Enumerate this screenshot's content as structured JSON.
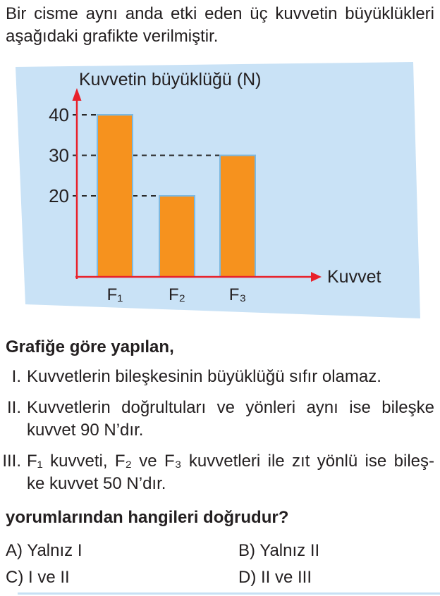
{
  "intro": {
    "lines": [
      "Bir cisme aynı anda etki eden üç kuvvetin büyüklükleri",
      "aşağıdaki grafikte verilmiştir."
    ]
  },
  "chart_data": {
    "type": "bar",
    "title": "",
    "ylabel": "Kuvvetin büyüklüğü (N)",
    "xlabel": "Kuvvet",
    "categories": [
      "F₁",
      "F₂",
      "F₃"
    ],
    "values": [
      40,
      20,
      30
    ],
    "yticks": [
      40,
      30,
      20
    ],
    "ylim": [
      0,
      45
    ],
    "grid": "dashed guides from axis to each bar top",
    "legend": "none",
    "panel_color": "#C9E2F6",
    "bar_color": "#F6921E",
    "bar_border": "#7CB9E2",
    "axis_color": "#E8212B",
    "dash_color": "#2A2A2A"
  },
  "section": {
    "lead": "Grafiğe göre yapılan,",
    "items": [
      {
        "numeral": "I.",
        "lines": [
          "Kuvvetlerin bileşkesinin büyüklüğü sıfır olamaz."
        ]
      },
      {
        "numeral": "II.",
        "lines": [
          "Kuvvetlerin doğrultuları ve yönleri aynı ise bileşke",
          "kuvvet 90 N’dır."
        ]
      },
      {
        "numeral": "III.",
        "lines": [
          "F₁ kuvveti, F₂ ve F₃ kuvvetleri ile zıt yönlü ise bileş-",
          "ke kuvvet 50 N’dır."
        ]
      }
    ],
    "question": "yorumlarından hangileri doğrudur?"
  },
  "options": [
    "A) Yalnız I",
    "B) Yalnız II",
    "C) I ve II",
    "D) II ve III"
  ],
  "colors": {
    "text": "#231F20",
    "divider": "#C7E0F4"
  }
}
